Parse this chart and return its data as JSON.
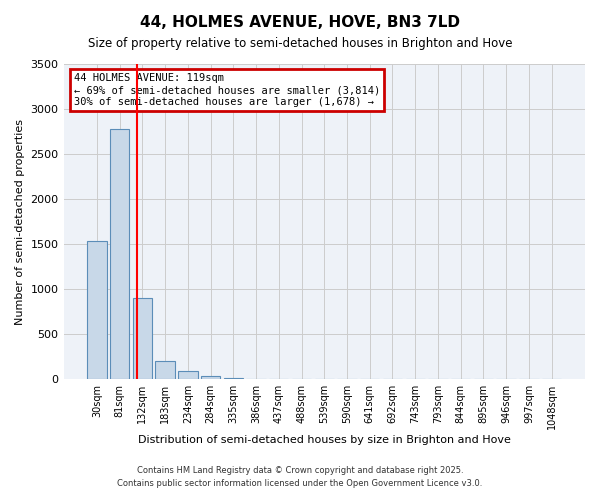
{
  "title": "44, HOLMES AVENUE, HOVE, BN3 7LD",
  "subtitle": "Size of property relative to semi-detached houses in Brighton and Hove",
  "xlabel": "Distribution of semi-detached houses by size in Brighton and Hove",
  "ylabel": "Number of semi-detached properties",
  "footer_line1": "Contains HM Land Registry data © Crown copyright and database right 2025.",
  "footer_line2": "Contains public sector information licensed under the Open Government Licence v3.0.",
  "bin_labels": [
    "30sqm",
    "81sqm",
    "132sqm",
    "183sqm",
    "234sqm",
    "284sqm",
    "335sqm",
    "386sqm",
    "437sqm",
    "488sqm",
    "539sqm",
    "590sqm",
    "641sqm",
    "692sqm",
    "743sqm",
    "793sqm",
    "844sqm",
    "895sqm",
    "946sqm",
    "997sqm",
    "1048sqm"
  ],
  "bar_values": [
    1530,
    2780,
    900,
    205,
    90,
    35,
    18,
    5,
    2,
    1,
    0,
    0,
    0,
    0,
    0,
    0,
    0,
    0,
    0,
    0,
    0
  ],
  "bar_color": "#c8d8e8",
  "bar_edge_color": "#5b8db8",
  "grid_color": "#cccccc",
  "background_color": "#eef2f8",
  "red_line_x": 1.78,
  "annotation_title": "44 HOLMES AVENUE: 119sqm",
  "annotation_line1": "← 69% of semi-detached houses are smaller (3,814)",
  "annotation_line2": "30% of semi-detached houses are larger (1,678) →",
  "annotation_box_color": "#cc0000",
  "ylim": [
    0,
    3500
  ],
  "yticks": [
    0,
    500,
    1000,
    1500,
    2000,
    2500,
    3000,
    3500
  ]
}
